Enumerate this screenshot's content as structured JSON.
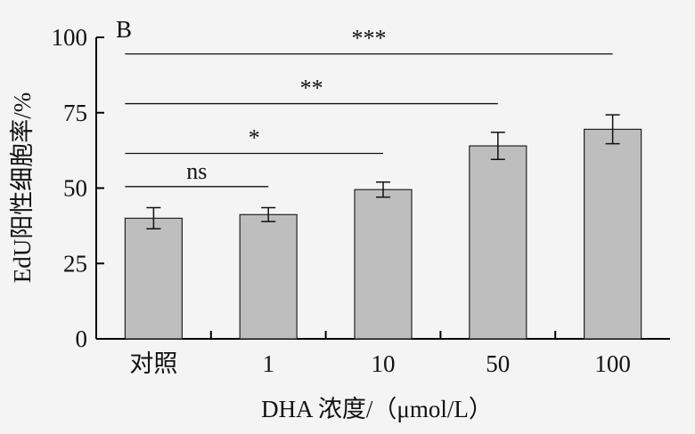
{
  "chart_data": {
    "type": "bar",
    "panel_label": "B",
    "categories": [
      "对照",
      "1",
      "10",
      "50",
      "100"
    ],
    "values": [
      40,
      41.2,
      49.5,
      64,
      69.5
    ],
    "errors": [
      3.5,
      2.3,
      2.5,
      4.5,
      4.8
    ],
    "xlabel": "DHA 浓度/（μmol/L）",
    "ylabel": "EdU阳性细胞率/%",
    "ylim": [
      0,
      100
    ],
    "yticks": [
      0,
      25,
      50,
      75,
      100
    ],
    "grid": false,
    "bar_color": "#bebebe",
    "significance": [
      {
        "from": 0,
        "to": 1,
        "label": "ns",
        "y": 50.5
      },
      {
        "from": 0,
        "to": 2,
        "label": "*",
        "y": 61.5
      },
      {
        "from": 0,
        "to": 3,
        "label": "**",
        "y": 78
      },
      {
        "from": 0,
        "to": 4,
        "label": "***",
        "y": 94.5
      }
    ]
  }
}
